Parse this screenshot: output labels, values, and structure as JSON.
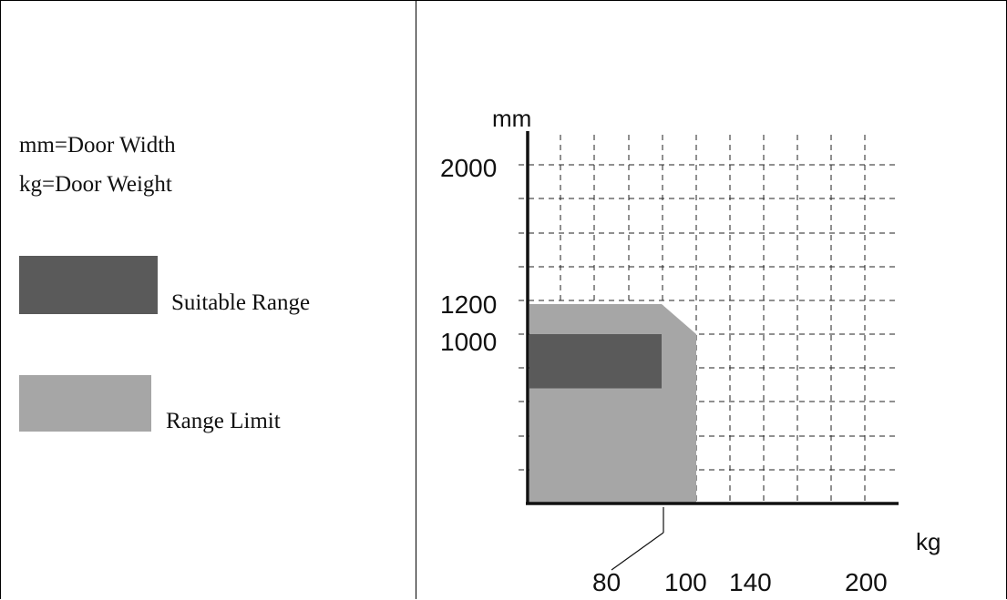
{
  "legend_panel": {
    "definitions": [
      "mm=Door Width",
      "kg=Door Weight"
    ],
    "items": [
      {
        "label": "Suitable Range",
        "color": "#5a5a5a"
      },
      {
        "label": "Range Limit",
        "color": "#a6a6a6"
      }
    ]
  },
  "chart_data": {
    "type": "area",
    "xlabel": "kg",
    "ylabel": "mm",
    "x_tick_labels": [
      "80",
      "100",
      "140",
      "200"
    ],
    "y_tick_labels": [
      "2000",
      "1200",
      "1000"
    ],
    "grid": true,
    "regions": [
      {
        "name": "Range Limit",
        "color": "#a6a6a6",
        "note": "approximate polygon read from grid: x in kg, y in mm",
        "polygon": [
          [
            0,
            0
          ],
          [
            0,
            1200
          ],
          [
            80,
            1200
          ],
          [
            100,
            1000
          ],
          [
            100,
            0
          ]
        ]
      },
      {
        "name": "Suitable Range",
        "color": "#5a5a5a",
        "polygon": [
          [
            0,
            680
          ],
          [
            80,
            680
          ],
          [
            80,
            1000
          ],
          [
            0,
            1000
          ]
        ]
      }
    ]
  }
}
